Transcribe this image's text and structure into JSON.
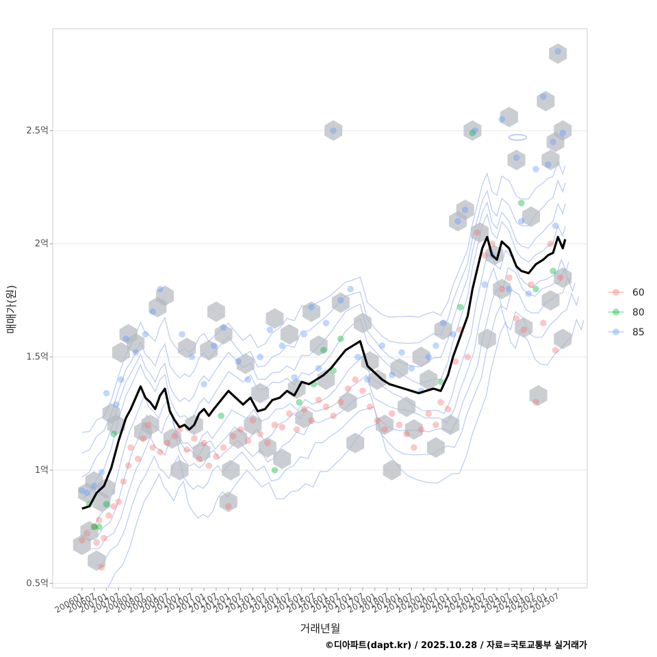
{
  "chart_data": {
    "type": "scatter",
    "xlabel": "거래년월",
    "ylabel": "매매가(원)",
    "caption": "©디아파트(dapt.kr) / 2025.10.28 / 자료=국토교통부 실거래가",
    "y_ticks": [
      {
        "value": 0.5,
        "label": "0.5억"
      },
      {
        "value": 1.0,
        "label": "1억"
      },
      {
        "value": 1.5,
        "label": "1.5억"
      },
      {
        "value": 2.0,
        "label": "2억"
      },
      {
        "value": 2.5,
        "label": "2.5억"
      }
    ],
    "ylim": [
      0.48,
      2.95
    ],
    "xlim": [
      2004.8,
      2026.7
    ],
    "x_ticks": [
      "200601",
      "200607",
      "200701",
      "200707",
      "200801",
      "200807",
      "200901",
      "200907",
      "201001",
      "201007",
      "201101",
      "201107",
      "201201",
      "201207",
      "201301",
      "201307",
      "201401",
      "201407",
      "201501",
      "201507",
      "201601",
      "201607",
      "201701",
      "201707",
      "201801",
      "201807",
      "201901",
      "201907",
      "202001",
      "202007",
      "202101",
      "202107",
      "202201",
      "202207",
      "202301",
      "202307",
      "202401",
      "202407",
      "202501",
      "202507"
    ],
    "legend": {
      "title": "",
      "position": "right",
      "entries": [
        {
          "label": "60",
          "color": "#F8766D"
        },
        {
          "label": "80",
          "color": "#00BA38"
        },
        {
          "label": "85",
          "color": "#619CFF"
        }
      ]
    },
    "series": [
      {
        "name": "60",
        "color": "#F8766D",
        "points": [
          [
            2006.0,
            0.69
          ],
          [
            2006.2,
            0.72
          ],
          [
            2006.5,
            0.75
          ],
          [
            2006.6,
            0.68
          ],
          [
            2006.7,
            0.78
          ],
          [
            2006.8,
            0.57
          ],
          [
            2006.9,
            0.7
          ],
          [
            2007.1,
            0.8
          ],
          [
            2007.3,
            0.84
          ],
          [
            2007.5,
            0.86
          ],
          [
            2007.7,
            0.95
          ],
          [
            2007.9,
            1.02
          ],
          [
            2008.0,
            1.1
          ],
          [
            2008.3,
            1.05
          ],
          [
            2008.5,
            1.14
          ],
          [
            2008.7,
            1.2
          ],
          [
            2008.9,
            1.1
          ],
          [
            2009.2,
            1.08
          ],
          [
            2009.5,
            1.12
          ],
          [
            2009.8,
            1.15
          ],
          [
            2010.0,
            1.18
          ],
          [
            2010.3,
            1.09
          ],
          [
            2010.6,
            1.14
          ],
          [
            2010.8,
            1.05
          ],
          [
            2011.0,
            1.12
          ],
          [
            2011.2,
            1.02
          ],
          [
            2011.5,
            1.06
          ],
          [
            2011.8,
            1.1
          ],
          [
            2012.0,
            0.84
          ],
          [
            2012.2,
            1.15
          ],
          [
            2012.5,
            1.18
          ],
          [
            2012.8,
            1.13
          ],
          [
            2013.0,
            1.22
          ],
          [
            2013.3,
            1.16
          ],
          [
            2013.6,
            1.12
          ],
          [
            2013.9,
            1.2
          ],
          [
            2014.2,
            1.19
          ],
          [
            2014.5,
            1.25
          ],
          [
            2014.8,
            1.18
          ],
          [
            2015.1,
            1.27
          ],
          [
            2015.4,
            1.22
          ],
          [
            2015.7,
            1.31
          ],
          [
            2016.0,
            1.28
          ],
          [
            2016.3,
            1.24
          ],
          [
            2016.6,
            1.3
          ],
          [
            2016.9,
            1.36
          ],
          [
            2017.2,
            1.4
          ],
          [
            2017.5,
            1.35
          ],
          [
            2017.8,
            1.28
          ],
          [
            2018.1,
            1.22
          ],
          [
            2018.4,
            1.18
          ],
          [
            2018.7,
            1.25
          ],
          [
            2019.0,
            1.2
          ],
          [
            2019.3,
            1.16
          ],
          [
            2019.6,
            1.1
          ],
          [
            2019.9,
            1.18
          ],
          [
            2020.2,
            1.25
          ],
          [
            2020.5,
            1.2
          ],
          [
            2020.7,
            1.3
          ],
          [
            2021.0,
            1.27
          ],
          [
            2021.3,
            1.48
          ],
          [
            2021.5,
            1.62
          ],
          [
            2021.8,
            1.5
          ],
          [
            2022.2,
            2.05
          ],
          [
            2022.5,
            1.95
          ],
          [
            2022.8,
            2.0
          ],
          [
            2023.2,
            1.8
          ],
          [
            2023.5,
            1.85
          ],
          [
            2023.8,
            1.67
          ],
          [
            2024.1,
            1.62
          ],
          [
            2024.4,
            1.82
          ],
          [
            2024.6,
            1.3
          ],
          [
            2024.9,
            1.65
          ],
          [
            2025.2,
            2.0
          ],
          [
            2025.4,
            1.53
          ],
          [
            2025.6,
            1.85
          ]
        ]
      },
      {
        "name": "80",
        "color": "#00BA38",
        "points": [
          [
            2006.3,
            0.85
          ],
          [
            2006.5,
            0.75
          ],
          [
            2006.7,
            0.75
          ],
          [
            2007.0,
            0.85
          ],
          [
            2007.3,
            1.16
          ],
          [
            2011.7,
            1.24
          ],
          [
            2013.9,
            1.0
          ],
          [
            2014.9,
            1.3
          ],
          [
            2015.5,
            1.38
          ],
          [
            2015.9,
            1.53
          ],
          [
            2016.3,
            1.44
          ],
          [
            2016.6,
            1.58
          ],
          [
            2020.7,
            1.39
          ],
          [
            2021.5,
            1.72
          ],
          [
            2022.0,
            2.49
          ],
          [
            2024.0,
            2.18
          ],
          [
            2024.6,
            1.8
          ],
          [
            2025.3,
            1.88
          ]
        ]
      },
      {
        "name": "85",
        "color": "#619CFF",
        "points": [
          [
            2006.0,
            0.91
          ],
          [
            2006.2,
            0.9
          ],
          [
            2006.5,
            0.93
          ],
          [
            2006.8,
            0.99
          ],
          [
            2007.0,
            1.34
          ],
          [
            2007.4,
            1.29
          ],
          [
            2007.6,
            1.4
          ],
          [
            2007.8,
            1.58
          ],
          [
            2008.2,
            1.52
          ],
          [
            2008.6,
            1.6
          ],
          [
            2008.9,
            1.7
          ],
          [
            2009.2,
            1.8
          ],
          [
            2010.1,
            1.6
          ],
          [
            2010.5,
            1.5
          ],
          [
            2011.0,
            1.38
          ],
          [
            2011.4,
            1.55
          ],
          [
            2011.8,
            1.63
          ],
          [
            2012.4,
            1.48
          ],
          [
            2012.8,
            1.4
          ],
          [
            2013.3,
            1.5
          ],
          [
            2013.7,
            1.62
          ],
          [
            2014.2,
            1.55
          ],
          [
            2014.7,
            1.41
          ],
          [
            2015.1,
            1.6
          ],
          [
            2015.4,
            1.72
          ],
          [
            2015.7,
            1.45
          ],
          [
            2016.0,
            1.65
          ],
          [
            2016.3,
            2.5
          ],
          [
            2016.6,
            1.75
          ],
          [
            2017.0,
            1.8
          ],
          [
            2017.3,
            1.5
          ],
          [
            2017.7,
            1.4
          ],
          [
            2018.3,
            1.55
          ],
          [
            2018.7,
            1.42
          ],
          [
            2019.1,
            1.52
          ],
          [
            2019.5,
            1.45
          ],
          [
            2019.9,
            1.35
          ],
          [
            2020.2,
            1.5
          ],
          [
            2020.5,
            1.55
          ],
          [
            2020.8,
            1.65
          ],
          [
            2021.2,
            1.6
          ],
          [
            2021.4,
            2.1
          ],
          [
            2021.7,
            2.15
          ],
          [
            2022.1,
            2.5
          ],
          [
            2022.5,
            1.82
          ],
          [
            2022.8,
            1.95
          ],
          [
            2023.2,
            2.55
          ],
          [
            2023.5,
            1.8
          ],
          [
            2023.8,
            2.38
          ],
          [
            2024.0,
            2.1
          ],
          [
            2024.3,
            1.78
          ],
          [
            2024.6,
            2.33
          ],
          [
            2024.9,
            2.65
          ],
          [
            2025.1,
            2.35
          ],
          [
            2025.3,
            2.45
          ],
          [
            2025.5,
            2.85
          ],
          [
            2025.7,
            2.49
          ],
          [
            2025.4,
            2.08
          ]
        ]
      }
    ],
    "trend_line": {
      "name": "median",
      "color": "#000000",
      "points": [
        [
          2006.0,
          0.83
        ],
        [
          2006.3,
          0.84
        ],
        [
          2006.6,
          0.9
        ],
        [
          2006.9,
          0.93
        ],
        [
          2007.2,
          1.01
        ],
        [
          2007.5,
          1.13
        ],
        [
          2007.8,
          1.23
        ],
        [
          2008.0,
          1.27
        ],
        [
          2008.2,
          1.32
        ],
        [
          2008.4,
          1.37
        ],
        [
          2008.6,
          1.32
        ],
        [
          2008.8,
          1.3
        ],
        [
          2009.0,
          1.27
        ],
        [
          2009.2,
          1.33
        ],
        [
          2009.4,
          1.36
        ],
        [
          2009.6,
          1.26
        ],
        [
          2009.8,
          1.22
        ],
        [
          2010.0,
          1.19
        ],
        [
          2010.2,
          1.2
        ],
        [
          2010.4,
          1.18
        ],
        [
          2010.6,
          1.2
        ],
        [
          2010.8,
          1.25
        ],
        [
          2011.0,
          1.27
        ],
        [
          2011.2,
          1.24
        ],
        [
          2011.4,
          1.27
        ],
        [
          2011.7,
          1.31
        ],
        [
          2012.0,
          1.35
        ],
        [
          2012.3,
          1.32
        ],
        [
          2012.6,
          1.29
        ],
        [
          2012.9,
          1.32
        ],
        [
          2013.2,
          1.26
        ],
        [
          2013.5,
          1.27
        ],
        [
          2013.8,
          1.31
        ],
        [
          2014.1,
          1.32
        ],
        [
          2014.4,
          1.35
        ],
        [
          2014.7,
          1.33
        ],
        [
          2015.0,
          1.39
        ],
        [
          2015.3,
          1.38
        ],
        [
          2015.6,
          1.4
        ],
        [
          2015.9,
          1.42
        ],
        [
          2016.2,
          1.45
        ],
        [
          2016.5,
          1.49
        ],
        [
          2016.8,
          1.53
        ],
        [
          2017.1,
          1.55
        ],
        [
          2017.4,
          1.57
        ],
        [
          2017.7,
          1.46
        ],
        [
          2018.0,
          1.43
        ],
        [
          2018.3,
          1.4
        ],
        [
          2018.6,
          1.38
        ],
        [
          2018.9,
          1.37
        ],
        [
          2019.2,
          1.36
        ],
        [
          2019.5,
          1.35
        ],
        [
          2019.8,
          1.34
        ],
        [
          2020.1,
          1.35
        ],
        [
          2020.4,
          1.36
        ],
        [
          2020.7,
          1.35
        ],
        [
          2021.0,
          1.42
        ],
        [
          2021.2,
          1.5
        ],
        [
          2021.4,
          1.56
        ],
        [
          2021.6,
          1.62
        ],
        [
          2021.8,
          1.68
        ],
        [
          2022.0,
          1.8
        ],
        [
          2022.2,
          1.89
        ],
        [
          2022.4,
          1.98
        ],
        [
          2022.6,
          2.03
        ],
        [
          2022.8,
          1.95
        ],
        [
          2023.0,
          1.93
        ],
        [
          2023.2,
          2.01
        ],
        [
          2023.5,
          1.98
        ],
        [
          2023.8,
          1.9
        ],
        [
          2024.0,
          1.88
        ],
        [
          2024.3,
          1.87
        ],
        [
          2024.6,
          1.91
        ],
        [
          2024.9,
          1.93
        ],
        [
          2025.1,
          1.95
        ],
        [
          2025.3,
          1.96
        ],
        [
          2025.5,
          2.03
        ],
        [
          2025.7,
          1.98
        ],
        [
          2025.8,
          2.02
        ]
      ]
    },
    "hexbins": [
      [
        2006.0,
        0.67
      ],
      [
        2006.3,
        0.73
      ],
      [
        2006.6,
        0.6
      ],
      [
        2006.2,
        0.9
      ],
      [
        2006.5,
        0.95
      ],
      [
        2006.8,
        0.86
      ],
      [
        2007.0,
        0.92
      ],
      [
        2007.2,
        1.25
      ],
      [
        2007.4,
        1.2
      ],
      [
        2007.6,
        1.52
      ],
      [
        2007.9,
        1.6
      ],
      [
        2008.2,
        1.56
      ],
      [
        2008.5,
        1.17
      ],
      [
        2008.8,
        1.2
      ],
      [
        2009.1,
        1.72
      ],
      [
        2009.4,
        1.77
      ],
      [
        2009.7,
        1.14
      ],
      [
        2010.0,
        1.0
      ],
      [
        2010.3,
        1.54
      ],
      [
        2010.6,
        1.2
      ],
      [
        2010.9,
        1.08
      ],
      [
        2011.2,
        1.53
      ],
      [
        2011.5,
        1.7
      ],
      [
        2011.8,
        1.6
      ],
      [
        2012.0,
        0.86
      ],
      [
        2012.1,
        1.0
      ],
      [
        2012.4,
        1.14
      ],
      [
        2012.7,
        1.47
      ],
      [
        2013.0,
        1.2
      ],
      [
        2013.3,
        1.34
      ],
      [
        2013.6,
        1.1
      ],
      [
        2013.9,
        1.67
      ],
      [
        2014.2,
        1.05
      ],
      [
        2014.5,
        1.6
      ],
      [
        2014.8,
        1.36
      ],
      [
        2015.1,
        1.23
      ],
      [
        2015.4,
        1.7
      ],
      [
        2015.7,
        1.55
      ],
      [
        2016.0,
        1.4
      ],
      [
        2016.3,
        2.5
      ],
      [
        2016.6,
        1.74
      ],
      [
        2016.9,
        1.3
      ],
      [
        2017.2,
        1.12
      ],
      [
        2017.5,
        1.65
      ],
      [
        2017.8,
        1.48
      ],
      [
        2018.1,
        1.4
      ],
      [
        2018.4,
        1.2
      ],
      [
        2018.7,
        1.0
      ],
      [
        2019.0,
        1.45
      ],
      [
        2019.3,
        1.28
      ],
      [
        2019.6,
        1.18
      ],
      [
        2019.9,
        1.5
      ],
      [
        2020.2,
        1.4
      ],
      [
        2020.5,
        1.1
      ],
      [
        2020.8,
        1.62
      ],
      [
        2021.1,
        1.2
      ],
      [
        2021.4,
        2.1
      ],
      [
        2021.7,
        2.15
      ],
      [
        2022.0,
        2.5
      ],
      [
        2022.3,
        2.05
      ],
      [
        2022.6,
        1.58
      ],
      [
        2022.9,
        1.95
      ],
      [
        2023.2,
        1.8
      ],
      [
        2023.5,
        2.56
      ],
      [
        2023.8,
        2.37
      ],
      [
        2024.1,
        1.63
      ],
      [
        2024.4,
        2.12
      ],
      [
        2024.7,
        1.33
      ],
      [
        2025.0,
        2.63
      ],
      [
        2025.2,
        2.37
      ],
      [
        2025.4,
        2.45
      ],
      [
        2025.5,
        2.84
      ],
      [
        2025.7,
        2.5
      ],
      [
        2025.7,
        1.85
      ],
      [
        2025.7,
        1.58
      ],
      [
        2025.2,
        1.75
      ]
    ]
  }
}
